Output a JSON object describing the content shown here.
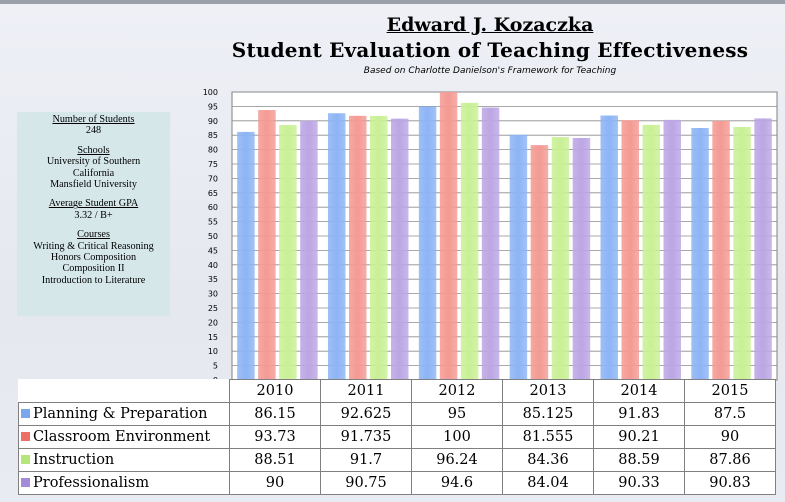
{
  "header": {
    "name": "Edward J. Kozaczka",
    "title": "Student Evaluation of Teaching Effectiveness",
    "subtitle": "Based on Charlotte  Danielson's  Framework for Teaching"
  },
  "info": {
    "students_label": "Number of Students",
    "students_value": "248",
    "schools_label": "Schools",
    "schools": [
      "University of Southern",
      "California",
      "Mansfield University"
    ],
    "gpa_label": "Average Student GPA",
    "gpa_value": "3.32 / B+",
    "courses_label": "Courses",
    "courses": [
      "Writing & Critical Reasoning",
      "Honors Composition",
      "Composition II",
      "Introduction to Literature"
    ]
  },
  "chart_data": {
    "type": "bar",
    "categories": [
      "2010",
      "2011",
      "2012",
      "2013",
      "2014",
      "2015"
    ],
    "ylim": [
      0,
      100
    ],
    "ytick_step": 5,
    "grid": true,
    "legend": "table-left",
    "series": [
      {
        "name": "Planning & Preparation",
        "color": "#8db4f5",
        "values": [
          86.15,
          92.625,
          95,
          85.125,
          91.83,
          87.5
        ],
        "labels": [
          "86.15",
          "92.625",
          "95",
          "85.125",
          "91.83",
          "87.5"
        ]
      },
      {
        "name": "Classroom Environment",
        "color": "#f49a93",
        "values": [
          93.73,
          91.735,
          100,
          81.555,
          90.21,
          90
        ],
        "labels": [
          "93.73",
          "91.735",
          "100",
          "81.555",
          "90.21",
          "90"
        ]
      },
      {
        "name": "Instruction",
        "color": "#c9f095",
        "values": [
          88.51,
          91.7,
          96.24,
          84.36,
          88.59,
          87.86
        ],
        "labels": [
          "88.51",
          "91.7",
          "96.24",
          "84.36",
          "88.59",
          "87.86"
        ]
      },
      {
        "name": "Professionalism",
        "color": "#bca6e4",
        "values": [
          90,
          90.75,
          94.6,
          84.04,
          90.33,
          90.83
        ],
        "labels": [
          "90",
          "90.75",
          "94.6",
          "84.04",
          "90.33",
          "90.83"
        ]
      }
    ]
  }
}
